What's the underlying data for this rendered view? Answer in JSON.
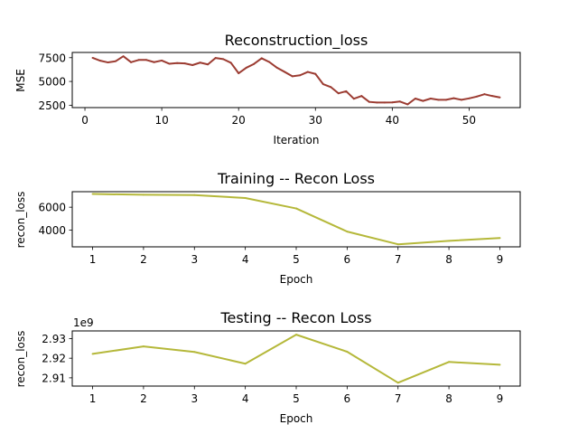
{
  "chart_data": [
    {
      "type": "line",
      "title": "Reconstruction_loss",
      "xlabel": "Iteration",
      "ylabel": "MSE",
      "xlim": [
        -1.65,
        56.65
      ],
      "ylim": [
        2250,
        8050
      ],
      "xticks": [
        0,
        10,
        20,
        30,
        40,
        50
      ],
      "yticks": [
        2500,
        5000,
        7500
      ],
      "series": [
        {
          "color": "#9c3c32",
          "x": [
            1,
            2,
            3,
            4,
            5,
            6,
            7,
            8,
            9,
            10,
            11,
            12,
            13,
            14,
            15,
            16,
            17,
            18,
            19,
            20,
            21,
            22,
            23,
            24,
            25,
            26,
            27,
            28,
            29,
            30,
            31,
            32,
            33,
            34,
            35,
            36,
            37,
            38,
            39,
            40,
            41,
            42,
            43,
            44,
            45,
            46,
            47,
            48,
            49,
            50,
            51,
            52,
            53,
            54
          ],
          "values": [
            7480,
            7180,
            7000,
            7130,
            7650,
            7020,
            7260,
            7260,
            7030,
            7200,
            6860,
            6930,
            6900,
            6720,
            6980,
            6790,
            7470,
            7350,
            6960,
            5860,
            6440,
            6840,
            7440,
            7040,
            6440,
            6000,
            5540,
            5650,
            6000,
            5790,
            4720,
            4410,
            3750,
            3970,
            3180,
            3470,
            2850,
            2780,
            2780,
            2800,
            2890,
            2590,
            3200,
            2950,
            3200,
            3070,
            3070,
            3240,
            3070,
            3220,
            3410,
            3660,
            3470,
            3320
          ]
        }
      ]
    },
    {
      "type": "line",
      "title": "Training -- Recon Loss",
      "xlabel": "Epoch",
      "ylabel": "recon_loss",
      "xlim": [
        0.6,
        9.4
      ],
      "ylim": [
        2550,
        7350
      ],
      "xticks": [
        1,
        2,
        3,
        4,
        5,
        6,
        7,
        8,
        9
      ],
      "yticks": [
        4000,
        6000
      ],
      "series": [
        {
          "color": "#b5b83a",
          "x": [
            1,
            2,
            3,
            4,
            5,
            6,
            7,
            8,
            9
          ],
          "values": [
            7150,
            7080,
            7050,
            6800,
            5890,
            3880,
            2770,
            3070,
            3320
          ]
        }
      ]
    },
    {
      "type": "line",
      "title": "Testing -- Recon Loss",
      "xlabel": "Epoch",
      "ylabel": "recon_loss",
      "scale_label": "1e9",
      "xlim": [
        0.6,
        9.4
      ],
      "ylim": [
        2.9058,
        2.9339
      ],
      "xticks": [
        1,
        2,
        3,
        4,
        5,
        6,
        7,
        8,
        9
      ],
      "yticks": [
        2.91,
        2.92,
        2.93
      ],
      "series": [
        {
          "color": "#b5b83a",
          "x": [
            1,
            2,
            3,
            4,
            5,
            6,
            7,
            8,
            9
          ],
          "values": [
            2.9222,
            2.926,
            2.9232,
            2.9172,
            2.932,
            2.9233,
            2.9075,
            2.9181,
            2.9167
          ]
        }
      ]
    }
  ]
}
